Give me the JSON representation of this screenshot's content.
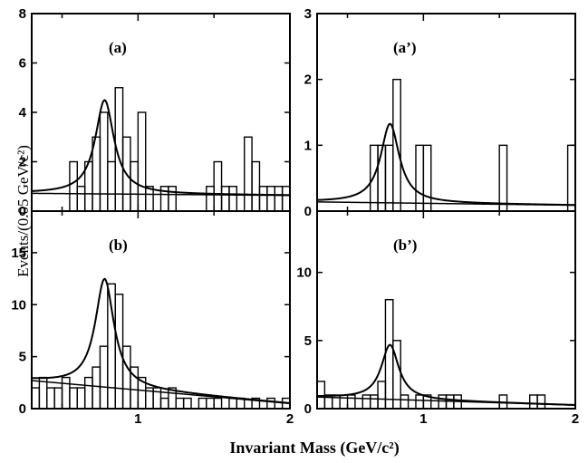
{
  "figure": {
    "ylabel": "Events/(0.05 GeV/c²)",
    "xlabel": "Invariant Mass (GeV/c²)"
  },
  "chart_data": [
    {
      "type": "histogram",
      "id": "a",
      "label": "(a)",
      "xlim": [
        0.3,
        2.0
      ],
      "ylim": [
        0,
        8
      ],
      "yticks": [
        "0",
        "2",
        "4",
        "6",
        "8"
      ],
      "xticks": [],
      "bin_width": 0.05,
      "bins_low_edges": [
        0.55,
        0.6,
        0.65,
        0.7,
        0.75,
        0.8,
        0.85,
        0.9,
        0.95,
        1.0,
        1.05,
        1.1,
        1.15,
        1.2,
        1.25,
        1.3,
        1.35,
        1.4,
        1.45,
        1.5,
        1.55,
        1.6,
        1.65,
        1.7,
        1.75,
        1.8,
        1.85,
        1.9,
        1.95
      ],
      "counts": [
        2,
        1,
        2,
        3,
        4,
        2,
        5,
        3,
        2,
        4,
        1,
        0,
        1,
        1,
        0,
        0,
        0,
        0,
        1,
        2,
        1,
        1,
        0,
        3,
        2,
        1,
        1,
        1,
        1
      ],
      "fit": {
        "mass": 0.78,
        "width": 0.15,
        "peak": 3.8,
        "bg_a": 0.72,
        "bg_b": -0.05
      }
    },
    {
      "type": "histogram",
      "id": "b",
      "label": "(b)",
      "xlim": [
        0.3,
        2.0
      ],
      "ylim": [
        0,
        19
      ],
      "yticks": [
        "0",
        "5",
        "10",
        "15"
      ],
      "xticks": [
        "1",
        "2"
      ],
      "bin_width": 0.05,
      "bins_low_edges": [
        0.3,
        0.35,
        0.4,
        0.45,
        0.5,
        0.55,
        0.6,
        0.65,
        0.7,
        0.75,
        0.8,
        0.85,
        0.9,
        0.95,
        1.0,
        1.05,
        1.1,
        1.15,
        1.2,
        1.25,
        1.3,
        1.35,
        1.4,
        1.45,
        1.5,
        1.55,
        1.6,
        1.65,
        1.7,
        1.75,
        1.8,
        1.85,
        1.9,
        1.95
      ],
      "counts": [
        2,
        3,
        2,
        2,
        3,
        2,
        2,
        3,
        4,
        6,
        12,
        11,
        6,
        4,
        3,
        2,
        2,
        1,
        2,
        1,
        1,
        0,
        1,
        1,
        1,
        0,
        1,
        1,
        0,
        1,
        0,
        1,
        0,
        1
      ],
      "fit": {
        "mass": 0.78,
        "width": 0.15,
        "peak": 10.4,
        "bg_a": 2.7,
        "bg_b": -1.3
      }
    },
    {
      "type": "histogram",
      "id": "a-prime",
      "label": "(a’)",
      "xlim": [
        0.3,
        2.0
      ],
      "ylim": [
        0,
        3
      ],
      "yticks": [
        "0",
        "1",
        "2",
        "3"
      ],
      "xticks": [],
      "bin_width": 0.05,
      "bins_low_edges": [
        0.65,
        0.7,
        0.75,
        0.8,
        0.85,
        0.9,
        0.95,
        1.0,
        1.05,
        1.5,
        1.95
      ],
      "counts": [
        1,
        1,
        1,
        2,
        0,
        0,
        1,
        1,
        0,
        1,
        1
      ],
      "fit": {
        "mass": 0.78,
        "width": 0.15,
        "peak": 1.2,
        "bg_a": 0.14,
        "bg_b": -0.03
      }
    },
    {
      "type": "histogram",
      "id": "b-prime",
      "label": "(b’)",
      "xlim": [
        0.3,
        2.0
      ],
      "ylim": [
        0,
        14.5
      ],
      "yticks": [
        "0",
        "5",
        "10"
      ],
      "xticks": [
        "1",
        "2"
      ],
      "bin_width": 0.05,
      "bins_low_edges": [
        0.3,
        0.35,
        0.4,
        0.45,
        0.5,
        0.55,
        0.6,
        0.65,
        0.7,
        0.75,
        0.8,
        0.85,
        0.9,
        0.95,
        1.0,
        1.05,
        1.1,
        1.15,
        1.2,
        1.25,
        1.3,
        1.5,
        1.7,
        1.75,
        1.8
      ],
      "counts": [
        2,
        1,
        1,
        0,
        1,
        0,
        1,
        1,
        2,
        8,
        5,
        1,
        0,
        1,
        1,
        0,
        1,
        1,
        1,
        0,
        0,
        1,
        1,
        1,
        0
      ],
      "fit": {
        "mass": 0.78,
        "width": 0.14,
        "peak": 4.0,
        "bg_a": 0.85,
        "bg_b": -0.35
      }
    }
  ]
}
